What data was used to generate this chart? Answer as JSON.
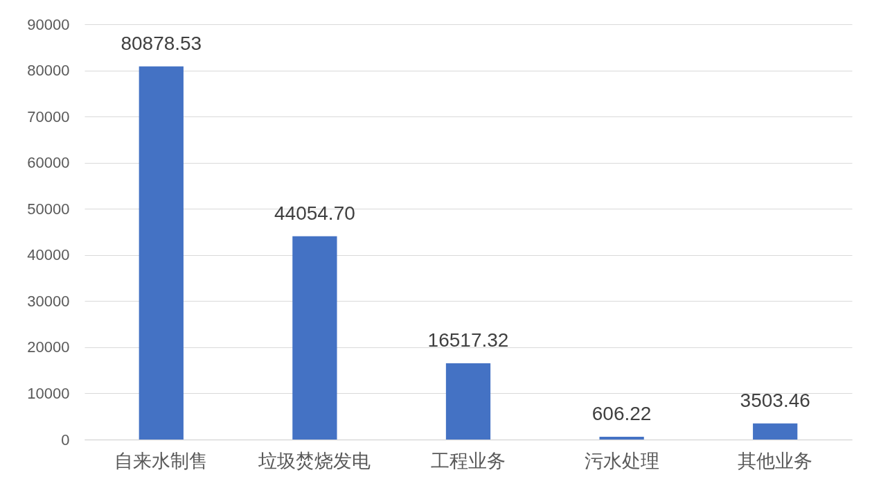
{
  "chart_data": {
    "type": "bar",
    "categories": [
      "自来水制售",
      "垃圾焚烧发电",
      "工程业务",
      "污水处理",
      "其他业务"
    ],
    "values": [
      80878.53,
      44054.7,
      16517.32,
      606.22,
      3503.46
    ],
    "value_labels": [
      "80878.53",
      "44054.70",
      "16517.32",
      "606.22",
      "3503.46"
    ],
    "color": "#4472c4",
    "ylim": [
      0,
      90000
    ],
    "yticks": [
      0,
      10000,
      20000,
      30000,
      40000,
      50000,
      60000,
      70000,
      80000,
      90000
    ],
    "grid": "y"
  }
}
